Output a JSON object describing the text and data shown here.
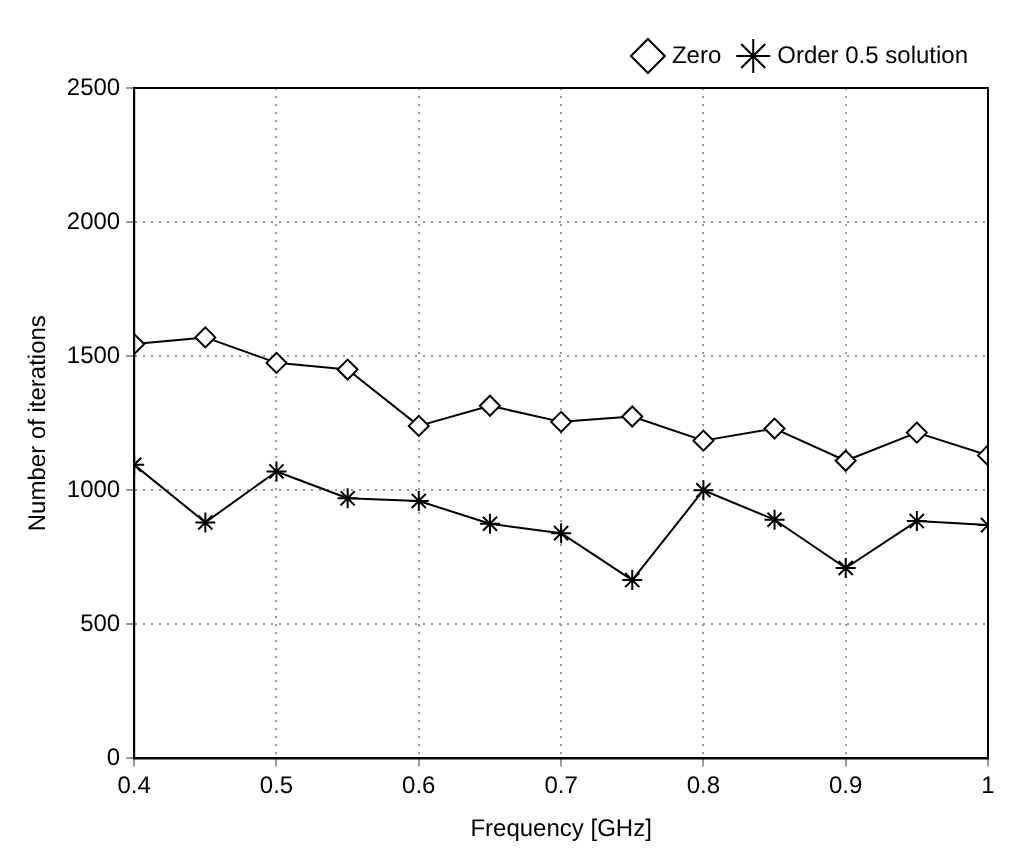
{
  "chart_data": {
    "type": "line",
    "xlabel": "Frequency [GHz]",
    "ylabel": "Number of iterations",
    "x": [
      0.4,
      0.45,
      0.5,
      0.55,
      0.6,
      0.65,
      0.7,
      0.75,
      0.8,
      0.85,
      0.9,
      0.95,
      1
    ],
    "series": [
      {
        "name": "Zero",
        "color": "#000000",
        "marker": "diamond",
        "values": [
          1545,
          1570,
          1475,
          1450,
          1240,
          1315,
          1255,
          1275,
          1185,
          1230,
          1110,
          1215,
          1130
        ]
      },
      {
        "name": "Order 0.5 solution",
        "color": "#000000",
        "marker": "cross",
        "values": [
          1095,
          880,
          1070,
          970,
          960,
          875,
          840,
          665,
          1000,
          890,
          710,
          885,
          870
        ]
      }
    ],
    "xlim": [
      0.4,
      1
    ],
    "xticks": [
      0.4,
      0.5,
      0.6,
      0.7,
      0.8,
      0.9,
      1
    ],
    "ylim": [
      0,
      2500
    ],
    "yticks": [
      0,
      500,
      1000,
      1500,
      2000,
      2500
    ],
    "grid": true,
    "legend": "top right",
    "line_style": "solid"
  }
}
